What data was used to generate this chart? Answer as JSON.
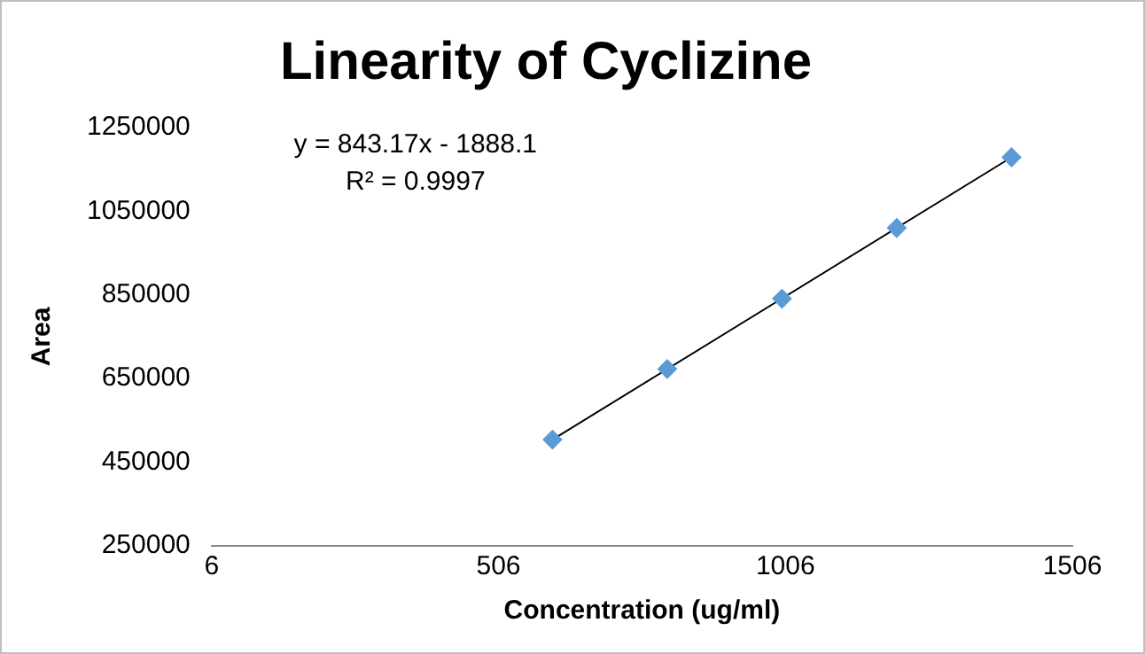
{
  "chart_data": {
    "type": "scatter",
    "title": "Linearity of Cyclizine",
    "xlabel": "Concentration (ug/ml)",
    "ylabel": "Area",
    "series": [
      {
        "type": "scatter",
        "color": "#5b9bd5",
        "x": [
          600,
          800,
          1000,
          1200,
          1400
        ],
        "values": [
          504000,
          673000,
          841000,
          1010000,
          1179000
        ],
        "marker": "diamond"
      },
      {
        "type": "line",
        "color": "#000000",
        "x": [
          600,
          1400
        ],
        "values": [
          504000,
          1179000
        ],
        "marker": "none"
      }
    ],
    "xlim": [
      6,
      1506
    ],
    "xticks": [
      6,
      506,
      1006,
      1506
    ],
    "ylim": [
      250000,
      1250000
    ],
    "yticks": [
      250000,
      450000,
      650000,
      850000,
      1050000,
      1250000
    ],
    "annotations": [
      "y = 843.17x - 1888.1",
      "R² = 0.9997"
    ],
    "grid": false,
    "legend": false
  }
}
